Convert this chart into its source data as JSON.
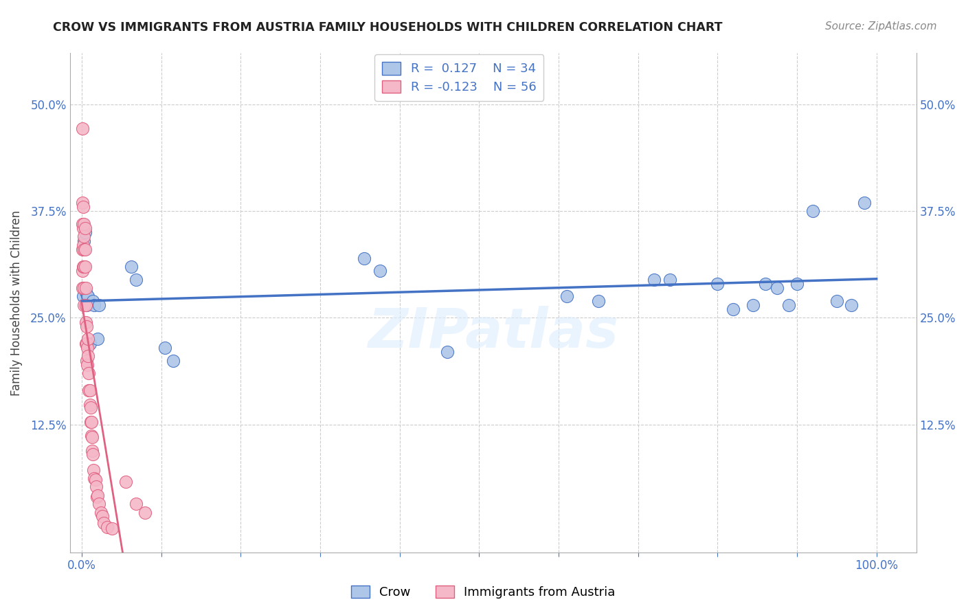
{
  "title": "CROW VS IMMIGRANTS FROM AUSTRIA FAMILY HOUSEHOLDS WITH CHILDREN CORRELATION CHART",
  "source": "Source: ZipAtlas.com",
  "ylabel": "Family Households with Children",
  "crow_R": 0.127,
  "crow_N": 34,
  "austria_R": -0.123,
  "austria_N": 56,
  "crow_color": "#aec6e8",
  "crow_line_color": "#4472c4",
  "austria_color": "#f4b8c8",
  "austria_line_color": "#e06080",
  "watermark": "ZIPatlas",
  "crow_x": [
    0.002,
    0.003,
    0.004,
    0.005,
    0.006,
    0.007,
    0.008,
    0.01,
    0.014,
    0.016,
    0.02,
    0.022,
    0.062,
    0.068,
    0.105,
    0.115,
    0.355,
    0.375,
    0.46,
    0.61,
    0.65,
    0.72,
    0.74,
    0.8,
    0.82,
    0.845,
    0.86,
    0.875,
    0.89,
    0.9,
    0.92,
    0.95,
    0.968,
    0.985
  ],
  "crow_y": [
    0.275,
    0.34,
    0.35,
    0.28,
    0.265,
    0.275,
    0.275,
    0.22,
    0.27,
    0.265,
    0.225,
    0.265,
    0.31,
    0.295,
    0.215,
    0.2,
    0.32,
    0.305,
    0.21,
    0.275,
    0.27,
    0.295,
    0.295,
    0.29,
    0.26,
    0.265,
    0.29,
    0.285,
    0.265,
    0.29,
    0.375,
    0.27,
    0.265,
    0.385
  ],
  "austria_x": [
    0.001,
    0.001,
    0.001,
    0.001,
    0.001,
    0.001,
    0.002,
    0.002,
    0.002,
    0.002,
    0.003,
    0.003,
    0.003,
    0.003,
    0.003,
    0.003,
    0.004,
    0.004,
    0.004,
    0.005,
    0.005,
    0.005,
    0.005,
    0.006,
    0.006,
    0.006,
    0.007,
    0.007,
    0.008,
    0.008,
    0.009,
    0.009,
    0.01,
    0.01,
    0.011,
    0.011,
    0.012,
    0.012,
    0.013,
    0.013,
    0.014,
    0.015,
    0.016,
    0.017,
    0.018,
    0.019,
    0.02,
    0.022,
    0.024,
    0.026,
    0.028,
    0.032,
    0.038,
    0.055,
    0.068,
    0.08
  ],
  "austria_y": [
    0.472,
    0.385,
    0.36,
    0.33,
    0.305,
    0.285,
    0.38,
    0.355,
    0.335,
    0.31,
    0.36,
    0.345,
    0.33,
    0.31,
    0.285,
    0.265,
    0.355,
    0.33,
    0.31,
    0.285,
    0.265,
    0.245,
    0.22,
    0.24,
    0.22,
    0.2,
    0.215,
    0.195,
    0.225,
    0.205,
    0.185,
    0.165,
    0.165,
    0.148,
    0.145,
    0.128,
    0.128,
    0.112,
    0.11,
    0.094,
    0.09,
    0.072,
    0.062,
    0.06,
    0.052,
    0.04,
    0.042,
    0.032,
    0.022,
    0.018,
    0.01,
    0.005,
    0.003,
    0.058,
    0.032,
    0.022
  ],
  "xlim": [
    -0.015,
    1.05
  ],
  "ylim": [
    -0.025,
    0.56
  ],
  "yticks": [
    0.125,
    0.25,
    0.375,
    0.5
  ],
  "xticks": [
    0.0,
    0.1,
    0.2,
    0.3,
    0.4,
    0.5,
    0.6,
    0.7,
    0.8,
    0.9,
    1.0
  ]
}
